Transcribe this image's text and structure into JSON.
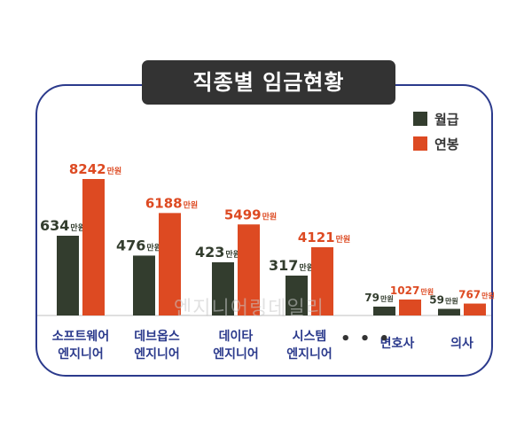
{
  "header": {
    "title": "직종별 임금현황"
  },
  "watermark": "엔지니어링데일리",
  "ellipsis": "• • •",
  "unit": "만원",
  "colors": {
    "monthly": "#333d2e",
    "annual": "#dd4a22",
    "frame": "#2b3a8c",
    "title_bg": "#333333"
  },
  "chart_data": {
    "type": "bar",
    "categories": [
      [
        "소프트웨어",
        "엔지니어"
      ],
      [
        "데브옵스",
        "엔지니어"
      ],
      [
        "데이타",
        "엔지니어"
      ],
      [
        "시스템",
        "엔지니어"
      ],
      [
        "변호사"
      ],
      [
        "의사"
      ]
    ],
    "series": [
      {
        "name": "월급",
        "values": [
          634,
          476,
          423,
          317,
          79,
          59
        ]
      },
      {
        "name": "연봉",
        "values": [
          8242,
          6188,
          5499,
          4121,
          1027,
          767
        ]
      }
    ],
    "legend_position": "top-right"
  }
}
